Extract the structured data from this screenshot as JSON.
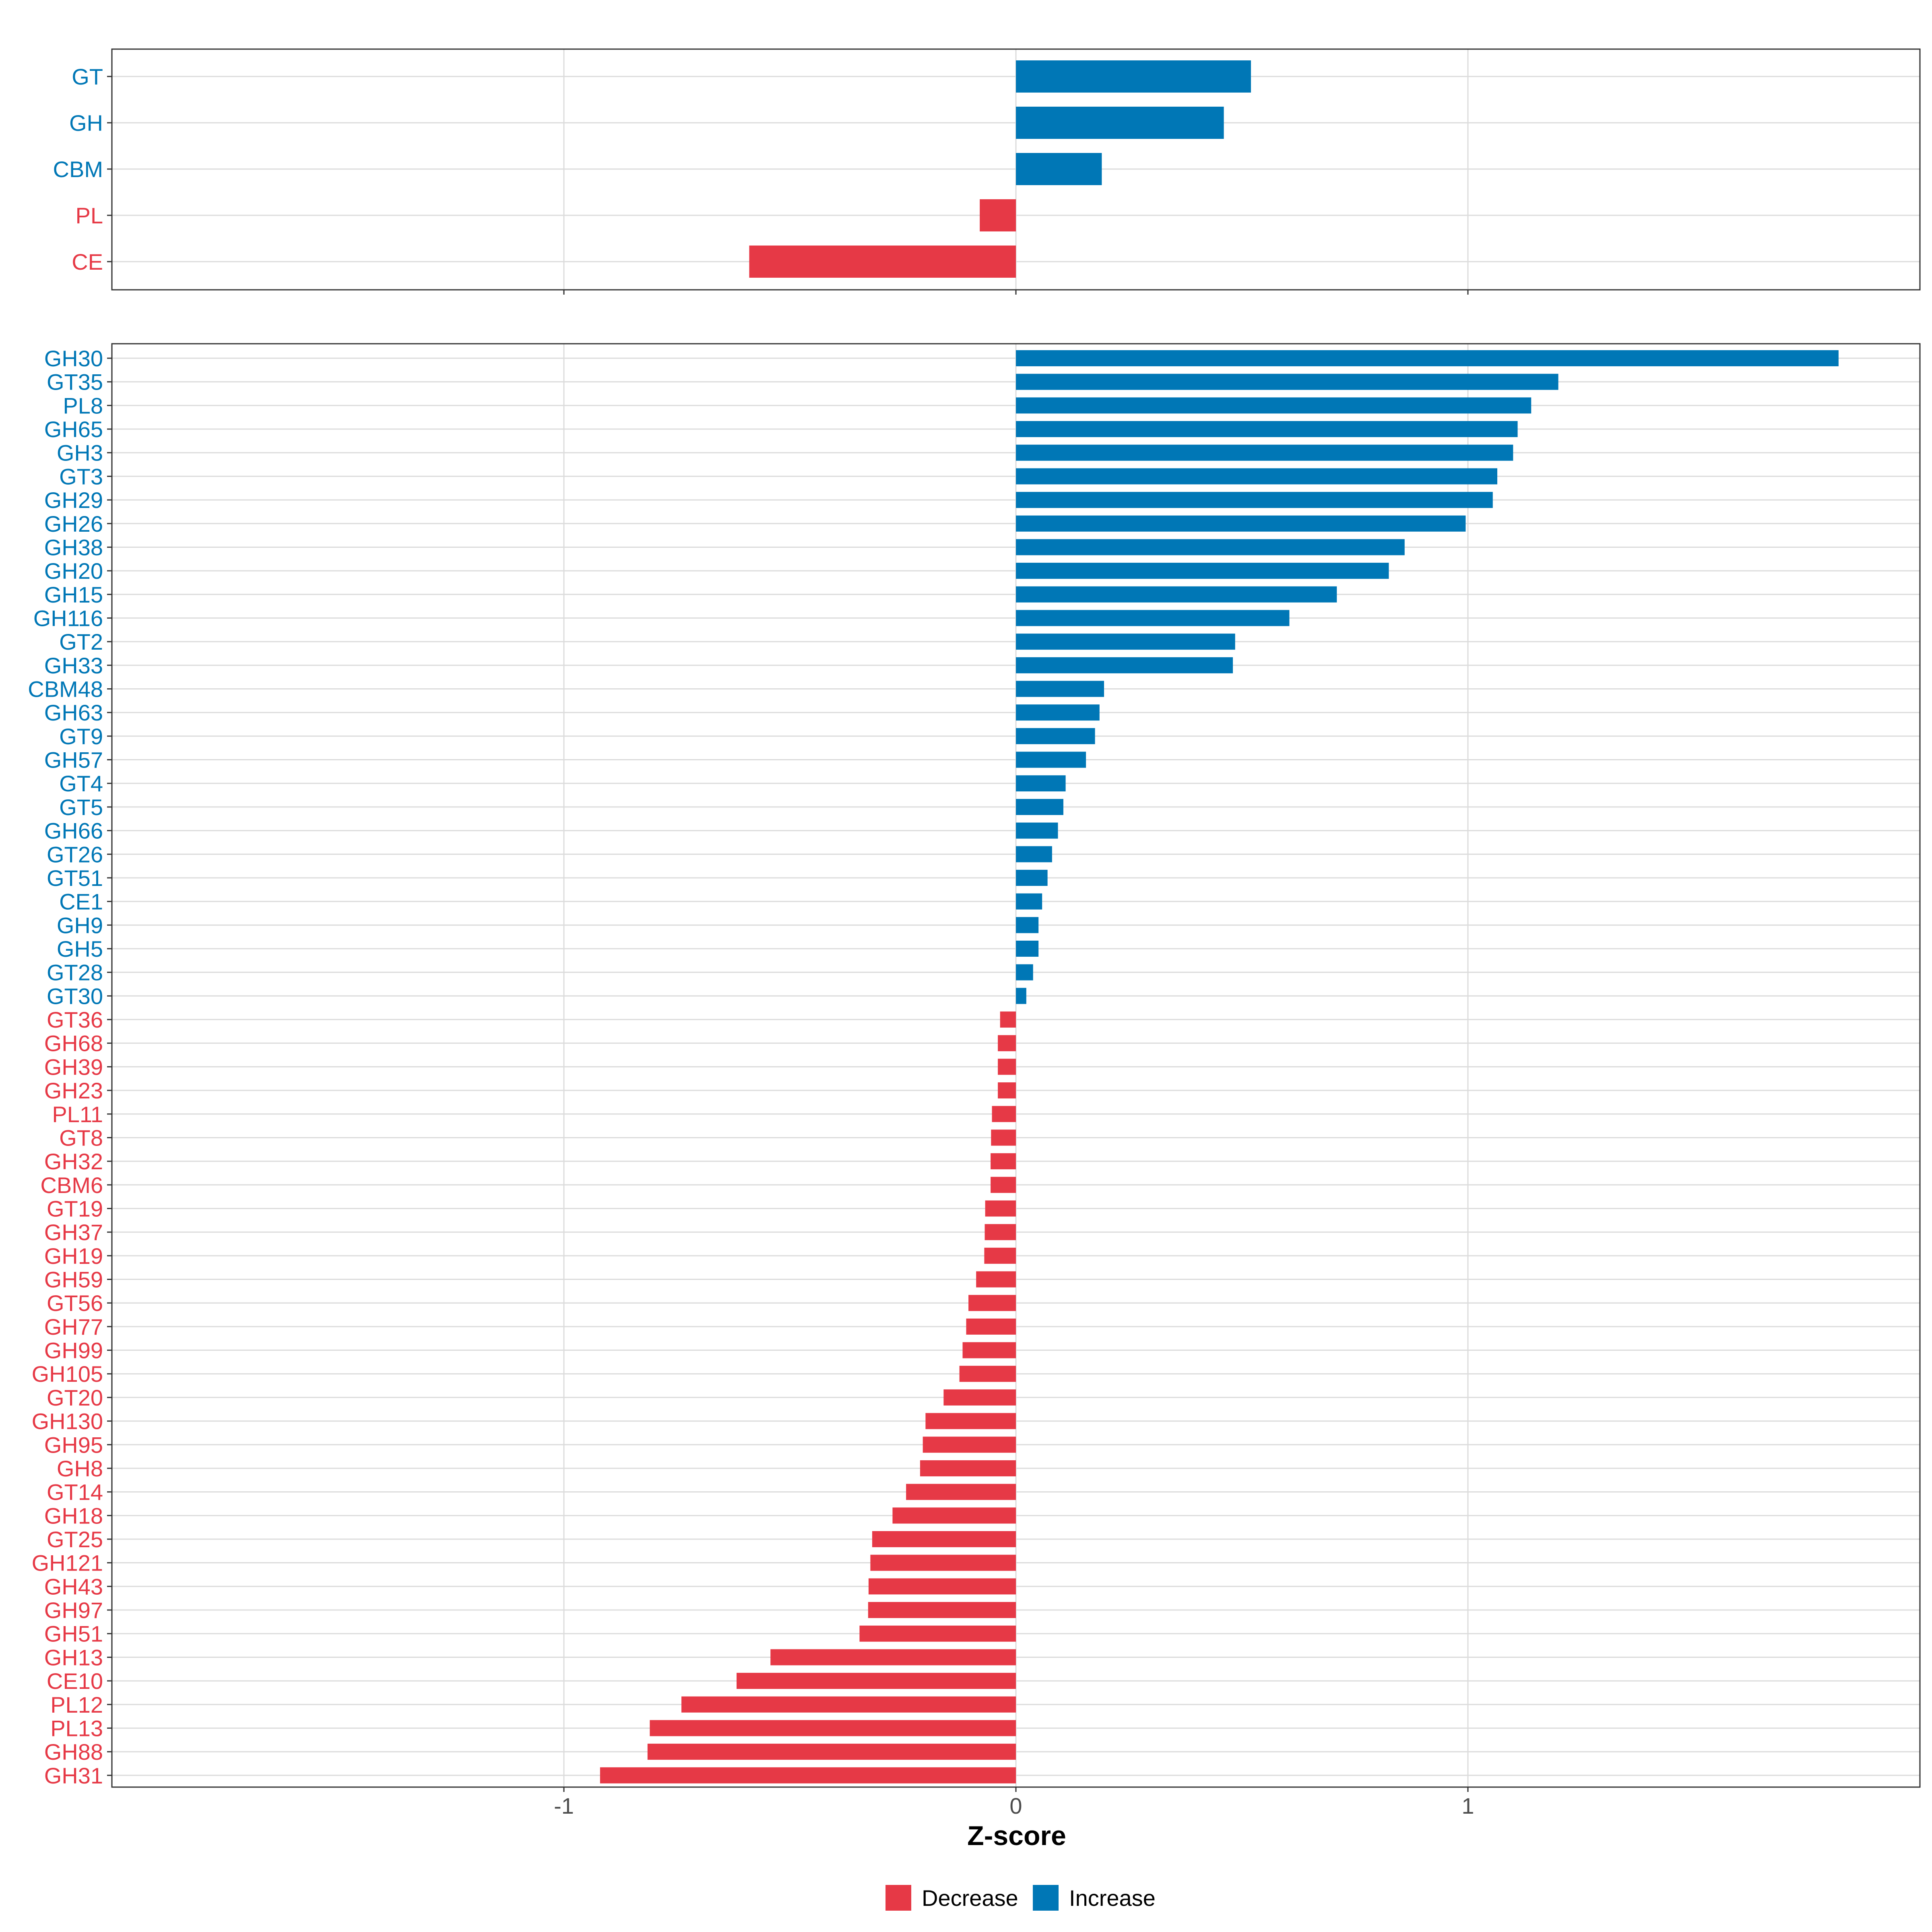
{
  "colors": {
    "decrease": "#e63946",
    "increase": "#0077b6"
  },
  "chart_data": [
    {
      "type": "bar",
      "orientation": "horizontal",
      "panel": "top",
      "categories": [
        "GT",
        "GH",
        "CBM",
        "PL",
        "CE"
      ],
      "values": [
        0.52,
        0.46,
        0.19,
        -0.08,
        -0.59
      ],
      "xlim": [
        -2,
        2
      ],
      "xticks": [
        -1,
        0,
        1
      ],
      "grid": true
    },
    {
      "type": "bar",
      "orientation": "horizontal",
      "panel": "bottom",
      "categories": [
        "GH30",
        "GT35",
        "PL8",
        "GH65",
        "GH3",
        "GT3",
        "GH29",
        "GH26",
        "GH38",
        "GH20",
        "GH15",
        "GH116",
        "GT2",
        "GH33",
        "CBM48",
        "GH63",
        "GT9",
        "GH57",
        "GT4",
        "GT5",
        "GH66",
        "GT26",
        "GT51",
        "CE1",
        "GH9",
        "GH5",
        "GT28",
        "GT30",
        "GT36",
        "GH68",
        "GH39",
        "GH23",
        "PL11",
        "GT8",
        "GH32",
        "CBM6",
        "GT19",
        "GH37",
        "GH19",
        "GH59",
        "GT56",
        "GH77",
        "GH99",
        "GH105",
        "GT20",
        "GH130",
        "GH95",
        "GH8",
        "GT14",
        "GH18",
        "GT25",
        "GH121",
        "GH43",
        "GH97",
        "GH51",
        "GH13",
        "CE10",
        "PL12",
        "PL13",
        "GH88",
        "GH31"
      ],
      "values": [
        1.82,
        1.2,
        1.14,
        1.11,
        1.1,
        1.065,
        1.055,
        0.995,
        0.86,
        0.825,
        0.71,
        0.605,
        0.485,
        0.48,
        0.195,
        0.185,
        0.175,
        0.155,
        0.11,
        0.105,
        0.093,
        0.08,
        0.07,
        0.058,
        0.05,
        0.05,
        0.038,
        0.023,
        -0.035,
        -0.04,
        -0.04,
        -0.04,
        -0.053,
        -0.055,
        -0.056,
        -0.056,
        -0.068,
        -0.069,
        -0.07,
        -0.088,
        -0.105,
        -0.11,
        -0.118,
        -0.125,
        -0.16,
        -0.2,
        -0.206,
        -0.212,
        -0.243,
        -0.273,
        -0.318,
        -0.322,
        -0.326,
        -0.327,
        -0.346,
        -0.543,
        -0.618,
        -0.74,
        -0.81,
        -0.815,
        -0.92
      ],
      "xlim": [
        -2,
        2
      ],
      "xticks": [
        -1,
        0,
        1
      ],
      "xticklabels": [
        "-1",
        "0",
        "1"
      ],
      "xlabel": "Z-score",
      "grid": true
    }
  ],
  "legend": {
    "position": "bottom",
    "items": [
      {
        "label": "Decrease",
        "color_key": "decrease"
      },
      {
        "label": "Increase",
        "color_key": "increase"
      }
    ]
  }
}
